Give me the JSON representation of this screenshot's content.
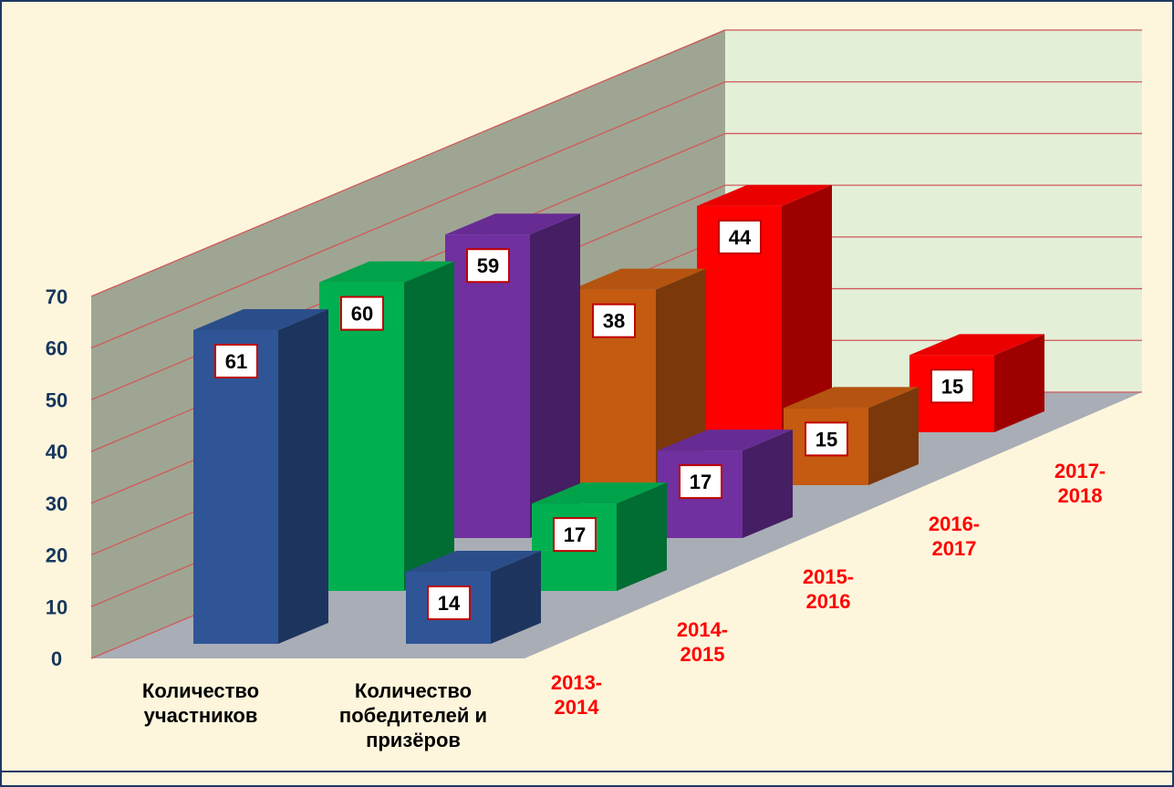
{
  "chart_data": {
    "type": "bar3d",
    "categories": [
      "Количество участников",
      "Количество победителей и призёров"
    ],
    "series": [
      {
        "name": "2013-2014",
        "color": "#2f5597",
        "values": [
          61,
          14
        ]
      },
      {
        "name": "2014-2015",
        "color": "#00b050",
        "values": [
          60,
          17
        ]
      },
      {
        "name": "2015-2016",
        "color": "#7030a0",
        "values": [
          59,
          17
        ]
      },
      {
        "name": "2016-2017",
        "color": "#c55a11",
        "values": [
          38,
          15
        ]
      },
      {
        "name": "2017-2018",
        "color": "#ff0000",
        "values": [
          44,
          15
        ]
      }
    ],
    "ylim": [
      0,
      70
    ],
    "yticks": [
      0,
      10,
      20,
      30,
      40,
      50,
      60,
      70
    ],
    "grid": true
  }
}
